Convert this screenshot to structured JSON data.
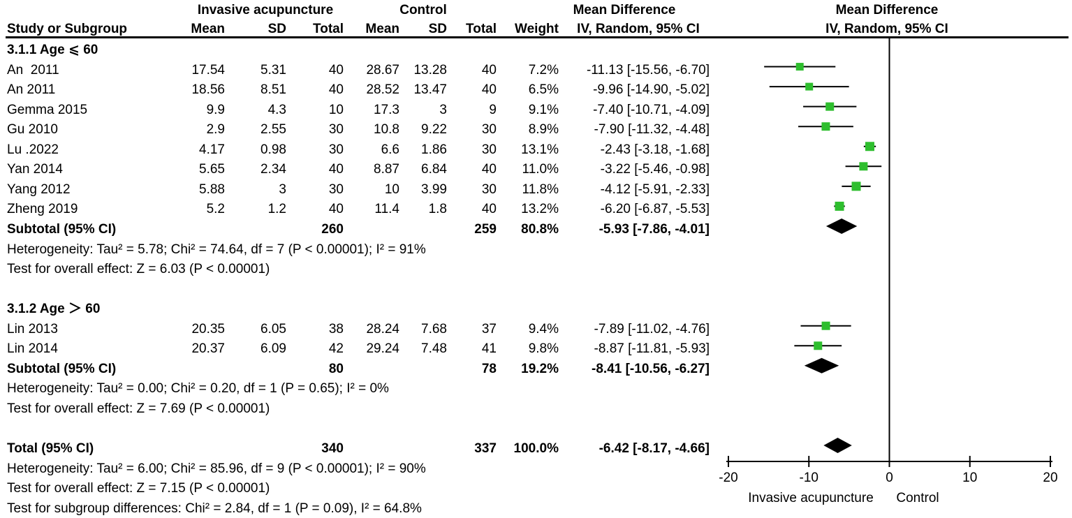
{
  "header": {
    "group_experimental": "Invasive acupuncture",
    "group_control": "Control",
    "mean_difference": "Mean Difference",
    "study": "Study or Subgroup",
    "mean": "Mean",
    "sd": "SD",
    "total": "Total",
    "weight": "Weight",
    "iv_random": "IV, Random, 95% CI"
  },
  "rows": [
    {
      "type": "section",
      "study": "3.1.1 Age ⩽ 60"
    },
    {
      "type": "study",
      "study": "An  2011",
      "mean1": "17.54",
      "sd1": "5.31",
      "total1": "40",
      "mean2": "28.67",
      "sd2": "13.28",
      "total2": "40",
      "weight": "7.2%",
      "ci": "-11.13 [-15.56, -6.70]",
      "md": -11.13,
      "lo": -15.56,
      "hi": -6.7,
      "w": 7.2
    },
    {
      "type": "study",
      "study": "An 2011",
      "mean1": "18.56",
      "sd1": "8.51",
      "total1": "40",
      "mean2": "28.52",
      "sd2": "13.47",
      "total2": "40",
      "weight": "6.5%",
      "ci": "-9.96 [-14.90, -5.02]",
      "md": -9.96,
      "lo": -14.9,
      "hi": -5.02,
      "w": 6.5
    },
    {
      "type": "study",
      "study": "Gemma 2015",
      "mean1": "9.9",
      "sd1": "4.3",
      "total1": "10",
      "mean2": "17.3",
      "sd2": "3",
      "total2": "9",
      "weight": "9.1%",
      "ci": "-7.40 [-10.71, -4.09]",
      "md": -7.4,
      "lo": -10.71,
      "hi": -4.09,
      "w": 9.1
    },
    {
      "type": "study",
      "study": "Gu 2010",
      "mean1": "2.9",
      "sd1": "2.55",
      "total1": "30",
      "mean2": "10.8",
      "sd2": "9.22",
      "total2": "30",
      "weight": "8.9%",
      "ci": "-7.90 [-11.32, -4.48]",
      "md": -7.9,
      "lo": -11.32,
      "hi": -4.48,
      "w": 8.9
    },
    {
      "type": "study",
      "study": "Lu .2022",
      "mean1": "4.17",
      "sd1": "0.98",
      "total1": "30",
      "mean2": "6.6",
      "sd2": "1.86",
      "total2": "30",
      "weight": "13.1%",
      "ci": "-2.43 [-3.18, -1.68]",
      "md": -2.43,
      "lo": -3.18,
      "hi": -1.68,
      "w": 13.1
    },
    {
      "type": "study",
      "study": "Yan 2014",
      "mean1": "5.65",
      "sd1": "2.34",
      "total1": "40",
      "mean2": "8.87",
      "sd2": "6.84",
      "total2": "40",
      "weight": "11.0%",
      "ci": "-3.22 [-5.46, -0.98]",
      "md": -3.22,
      "lo": -5.46,
      "hi": -0.98,
      "w": 11.0
    },
    {
      "type": "study",
      "study": "Yang 2012",
      "mean1": "5.88",
      "sd1": "3",
      "total1": "30",
      "mean2": "10",
      "sd2": "3.99",
      "total2": "30",
      "weight": "11.8%",
      "ci": "-4.12 [-5.91, -2.33]",
      "md": -4.12,
      "lo": -5.91,
      "hi": -2.33,
      "w": 11.8
    },
    {
      "type": "study",
      "study": "Zheng 2019",
      "mean1": "5.2",
      "sd1": "1.2",
      "total1": "40",
      "mean2": "11.4",
      "sd2": "1.8",
      "total2": "40",
      "weight": "13.2%",
      "ci": "-6.20 [-6.87, -5.53]",
      "md": -6.2,
      "lo": -6.87,
      "hi": -5.53,
      "w": 13.2
    },
    {
      "type": "subtotal",
      "study": "Subtotal (95% CI)",
      "total1": "260",
      "total2": "259",
      "weight": "80.8%",
      "ci": "-5.93 [-7.86, -4.01]",
      "md": -5.93,
      "lo": -7.86,
      "hi": -4.01
    },
    {
      "type": "note",
      "study": "Heterogeneity: Tau² = 5.78; Chi² = 74.64, df = 7 (P < 0.00001); I² = 91%"
    },
    {
      "type": "note",
      "study": "Test for overall effect: Z = 6.03 (P < 0.00001)"
    },
    {
      "type": "spacer"
    },
    {
      "type": "section",
      "study": "3.1.2 Age ＞ 60"
    },
    {
      "type": "study",
      "study": "Lin 2013",
      "mean1": "20.35",
      "sd1": "6.05",
      "total1": "38",
      "mean2": "28.24",
      "sd2": "7.68",
      "total2": "37",
      "weight": "9.4%",
      "ci": "-7.89 [-11.02, -4.76]",
      "md": -7.89,
      "lo": -11.02,
      "hi": -4.76,
      "w": 9.4
    },
    {
      "type": "study",
      "study": "Lin 2014",
      "mean1": "20.37",
      "sd1": "6.09",
      "total1": "42",
      "mean2": "29.24",
      "sd2": "7.48",
      "total2": "41",
      "weight": "9.8%",
      "ci": "-8.87 [-11.81, -5.93]",
      "md": -8.87,
      "lo": -11.81,
      "hi": -5.93,
      "w": 9.8
    },
    {
      "type": "subtotal",
      "study": "Subtotal (95% CI)",
      "total1": "80",
      "total2": "78",
      "weight": "19.2%",
      "ci": "-8.41 [-10.56, -6.27]",
      "md": -8.41,
      "lo": -10.56,
      "hi": -6.27
    },
    {
      "type": "note",
      "study": "Heterogeneity: Tau² = 0.00; Chi² = 0.20, df = 1 (P = 0.65); I² = 0%"
    },
    {
      "type": "note",
      "study": "Test for overall effect: Z = 7.69 (P < 0.00001)"
    },
    {
      "type": "spacer"
    },
    {
      "type": "total",
      "study": "Total (95% CI)",
      "total1": "340",
      "total2": "337",
      "weight": "100.0%",
      "ci": "-6.42 [-8.17, -4.66]",
      "md": -6.42,
      "lo": -8.17,
      "hi": -4.66
    },
    {
      "type": "note",
      "study": "Heterogeneity: Tau² = 6.00; Chi² = 85.96, df = 9 (P < 0.00001); I² = 90%"
    },
    {
      "type": "note",
      "study": "Test for overall effect: Z = 7.15 (P < 0.00001)"
    },
    {
      "type": "note",
      "study": "Test for subgroup differences: Chi² = 2.84, df = 1 (P = 0.09), I² = 64.8%"
    }
  ],
  "axis": {
    "tick_labels": [
      "-20",
      "-10",
      "0",
      "10",
      "20"
    ],
    "tick_values": [
      -20,
      -10,
      0,
      10,
      20
    ],
    "caption_left": "Invasive acupuncture",
    "caption_right": "Control"
  },
  "colors": {
    "marker_green": "#2EBE2E",
    "line_black": "#000000"
  },
  "chart_data": {
    "type": "scatter",
    "subtype": "forest-plot",
    "title": "Mean Difference, IV, Random, 95% CI",
    "xlim": [
      -20,
      20
    ],
    "x_ticks": [
      -20,
      -10,
      0,
      10,
      20
    ],
    "zero_line": 0,
    "xlabel_left": "Invasive acupuncture",
    "xlabel_right": "Control",
    "groups": [
      {
        "name": "3.1.1 Age ⩽ 60",
        "points": [
          {
            "study": "An  2011",
            "md": -11.13,
            "ci": [
              -15.56,
              -6.7
            ],
            "weight_pct": 7.2
          },
          {
            "study": "An 2011",
            "md": -9.96,
            "ci": [
              -14.9,
              -5.02
            ],
            "weight_pct": 6.5
          },
          {
            "study": "Gemma 2015",
            "md": -7.4,
            "ci": [
              -10.71,
              -4.09
            ],
            "weight_pct": 9.1
          },
          {
            "study": "Gu 2010",
            "md": -7.9,
            "ci": [
              -11.32,
              -4.48
            ],
            "weight_pct": 8.9
          },
          {
            "study": "Lu .2022",
            "md": -2.43,
            "ci": [
              -3.18,
              -1.68
            ],
            "weight_pct": 13.1
          },
          {
            "study": "Yan 2014",
            "md": -3.22,
            "ci": [
              -5.46,
              -0.98
            ],
            "weight_pct": 11.0
          },
          {
            "study": "Yang 2012",
            "md": -4.12,
            "ci": [
              -5.91,
              -2.33
            ],
            "weight_pct": 11.8
          },
          {
            "study": "Zheng 2019",
            "md": -6.2,
            "ci": [
              -6.87,
              -5.53
            ],
            "weight_pct": 13.2
          }
        ],
        "subtotal": {
          "md": -5.93,
          "ci": [
            -7.86,
            -4.01
          ],
          "weight_pct": 80.8,
          "n_exp": 260,
          "n_ctl": 259
        },
        "heterogeneity": "Tau² = 5.78; Chi² = 74.64, df = 7 (P < 0.00001); I² = 91%",
        "overall_effect": "Z = 6.03 (P < 0.00001)"
      },
      {
        "name": "3.1.2 Age ＞ 60",
        "points": [
          {
            "study": "Lin 2013",
            "md": -7.89,
            "ci": [
              -11.02,
              -4.76
            ],
            "weight_pct": 9.4
          },
          {
            "study": "Lin 2014",
            "md": -8.87,
            "ci": [
              -11.81,
              -5.93
            ],
            "weight_pct": 9.8
          }
        ],
        "subtotal": {
          "md": -8.41,
          "ci": [
            -10.56,
            -6.27
          ],
          "weight_pct": 19.2,
          "n_exp": 80,
          "n_ctl": 78
        },
        "heterogeneity": "Tau² = 0.00; Chi² = 0.20, df = 1 (P = 0.65); I² = 0%",
        "overall_effect": "Z = 7.69 (P < 0.00001)"
      }
    ],
    "total": {
      "md": -6.42,
      "ci": [
        -8.17,
        -4.66
      ],
      "weight_pct": 100.0,
      "n_exp": 340,
      "n_ctl": 337,
      "heterogeneity": "Tau² = 6.00; Chi² = 85.96, df = 9 (P < 0.00001); I² = 90%",
      "overall_effect": "Z = 7.15 (P < 0.00001)",
      "subgroup_differences": "Chi² = 2.84, df = 1 (P = 0.09), I² = 64.8%"
    }
  }
}
